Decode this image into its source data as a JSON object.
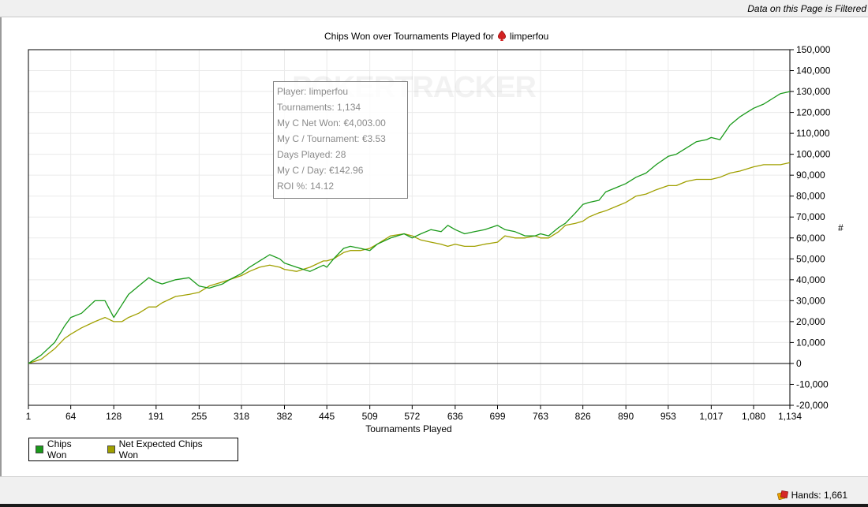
{
  "banner": {
    "text": "Data on this Page is Filtered"
  },
  "chart_data": {
    "type": "line",
    "title": "Chips Won over Tournaments Played for",
    "player": "limperfou",
    "xlabel": "Tournaments Played",
    "ylabel": "#",
    "xlim": [
      1,
      1134
    ],
    "ylim": [
      -20000,
      150000
    ],
    "x_ticks": [
      1,
      64,
      128,
      191,
      255,
      318,
      382,
      445,
      509,
      572,
      636,
      699,
      763,
      826,
      890,
      953,
      1017,
      1080,
      1134
    ],
    "x_tick_labels": [
      "1",
      "64",
      "128",
      "191",
      "255",
      "318",
      "382",
      "445",
      "509",
      "572",
      "636",
      "699",
      "763",
      "826",
      "890",
      "953",
      "1,017",
      "1,080",
      "1,134"
    ],
    "y_ticks": [
      150000,
      140000,
      130000,
      120000,
      110000,
      100000,
      90000,
      80000,
      70000,
      60000,
      50000,
      40000,
      30000,
      20000,
      10000,
      0,
      -10000,
      -20000
    ],
    "y_tick_labels": [
      "150,000",
      "140,000",
      "130,000",
      "120,000",
      "110,000",
      "100,000",
      "90,000",
      "80,000",
      "70,000",
      "60,000",
      "50,000",
      "40,000",
      "30,000",
      "20,000",
      "10,000",
      "0",
      "-10,000",
      "-20,000"
    ],
    "grid": true,
    "legend_position": "bottom-left",
    "series": [
      {
        "name": "Chips Won",
        "color": "#1a9a1a",
        "x": [
          1,
          20,
          40,
          55,
          64,
          80,
          100,
          115,
          128,
          140,
          150,
          165,
          180,
          191,
          200,
          220,
          240,
          255,
          270,
          290,
          300,
          318,
          330,
          345,
          360,
          375,
          382,
          400,
          420,
          440,
          445,
          455,
          470,
          480,
          495,
          509,
          520,
          540,
          560,
          572,
          585,
          600,
          615,
          625,
          636,
          650,
          665,
          680,
          699,
          710,
          725,
          740,
          755,
          763,
          775,
          790,
          800,
          815,
          826,
          835,
          850,
          860,
          875,
          890,
          905,
          920,
          935,
          953,
          965,
          980,
          995,
          1010,
          1017,
          1030,
          1045,
          1060,
          1070,
          1080,
          1095,
          1110,
          1120,
          1134
        ],
        "values": [
          0,
          4000,
          10000,
          18000,
          22000,
          24000,
          30000,
          30000,
          22000,
          28000,
          33000,
          37000,
          41000,
          39000,
          38000,
          40000,
          41000,
          37000,
          36000,
          38000,
          40000,
          43000,
          46000,
          49000,
          52000,
          50000,
          48000,
          46000,
          44000,
          47000,
          46000,
          50000,
          55000,
          56000,
          55000,
          54000,
          57000,
          60000,
          62000,
          60000,
          62000,
          64000,
          63000,
          66000,
          64000,
          62000,
          63000,
          64000,
          66000,
          64000,
          63000,
          61000,
          61000,
          62000,
          61000,
          65000,
          67000,
          72000,
          76000,
          77000,
          78000,
          82000,
          84000,
          86000,
          89000,
          91000,
          95000,
          99000,
          100000,
          103000,
          106000,
          107000,
          108000,
          107000,
          114000,
          118000,
          120000,
          122000,
          124000,
          127000,
          129000,
          130000
        ]
      },
      {
        "name": "Net Expected Chips Won",
        "color": "#a0a000",
        "x": [
          1,
          20,
          40,
          55,
          64,
          80,
          100,
          115,
          128,
          140,
          150,
          165,
          180,
          191,
          200,
          220,
          240,
          255,
          270,
          290,
          300,
          318,
          330,
          345,
          360,
          375,
          382,
          400,
          420,
          440,
          445,
          455,
          470,
          480,
          495,
          509,
          520,
          540,
          560,
          572,
          585,
          600,
          615,
          625,
          636,
          650,
          665,
          680,
          699,
          710,
          725,
          740,
          755,
          763,
          775,
          790,
          800,
          815,
          826,
          835,
          850,
          860,
          875,
          890,
          905,
          920,
          935,
          953,
          965,
          980,
          995,
          1010,
          1017,
          1030,
          1045,
          1060,
          1070,
          1080,
          1095,
          1110,
          1120,
          1134
        ],
        "values": [
          0,
          2000,
          7000,
          12000,
          14000,
          17000,
          20000,
          22000,
          20000,
          20000,
          22000,
          24000,
          27000,
          27000,
          29000,
          32000,
          33000,
          34000,
          37000,
          39000,
          40000,
          42000,
          44000,
          46000,
          47000,
          46000,
          45000,
          44000,
          46000,
          49000,
          49000,
          50000,
          53000,
          54000,
          54000,
          55000,
          57000,
          61000,
          62000,
          61000,
          59000,
          58000,
          57000,
          56000,
          57000,
          56000,
          56000,
          57000,
          58000,
          61000,
          60000,
          60000,
          61000,
          60000,
          60000,
          63000,
          66000,
          67000,
          68000,
          70000,
          72000,
          73000,
          75000,
          77000,
          80000,
          81000,
          83000,
          85000,
          85000,
          87000,
          88000,
          88000,
          88000,
          89000,
          91000,
          92000,
          93000,
          94000,
          95000,
          95000,
          95000,
          96000
        ]
      }
    ]
  },
  "legend": {
    "items": [
      {
        "label": "Chips Won",
        "color": "#1a9a1a"
      },
      {
        "label": "Net Expected Chips Won",
        "color": "#a0a000"
      }
    ]
  },
  "info_box": {
    "player": "Player: limperfou",
    "tournaments": "Tournaments: 1,134",
    "net_won": "My C Net Won: €4,003.00",
    "per_tournament": "My C / Tournament: €3.53",
    "days_played": "Days Played: 28",
    "per_day": "My C / Day: €142.96",
    "roi": "ROI %: 14.12"
  },
  "watermark": "POKERTRACKER",
  "status": {
    "hands": "Hands: 1,661"
  }
}
